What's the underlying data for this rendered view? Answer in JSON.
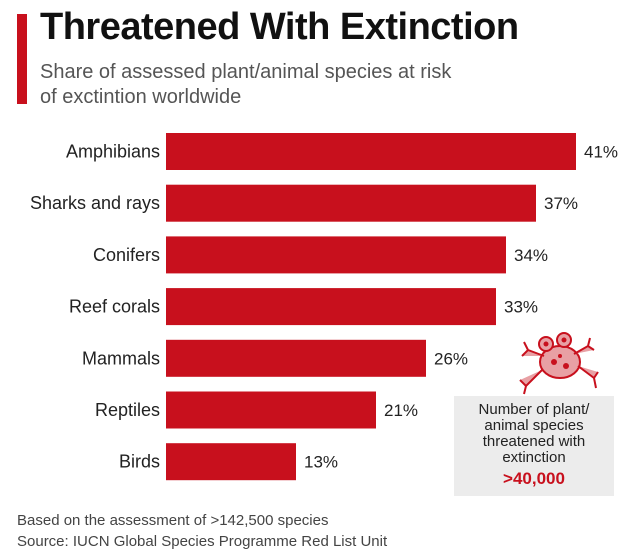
{
  "header": {
    "title": "Threatened With Extinction",
    "subtitle": "Share of assessed plant/animal species at risk of exctintion worldwide"
  },
  "chart_data": {
    "type": "bar",
    "orientation": "horizontal",
    "categories": [
      "Amphibians",
      "Sharks and rays",
      "Conifers",
      "Reef corals",
      "Mammals",
      "Reptiles",
      "Birds"
    ],
    "values": [
      41,
      37,
      34,
      33,
      26,
      21,
      13
    ],
    "value_labels": [
      "41%",
      "37%",
      "34%",
      "33%",
      "26%",
      "21%",
      "13%"
    ],
    "unit": "%",
    "bar_color": "#c8101d",
    "grid": false,
    "legend": "none"
  },
  "info_box": {
    "text": "Number of plant/ animal species threatened with extinction",
    "value": ">40,000",
    "icon": "frog-icon"
  },
  "footer": {
    "note": "Based on the assessment of >142,500 species",
    "source": "Source: IUCN Global Species Programme Red List Unit"
  },
  "colors": {
    "accent": "#c8101d",
    "info_box_background": "#ececec"
  }
}
